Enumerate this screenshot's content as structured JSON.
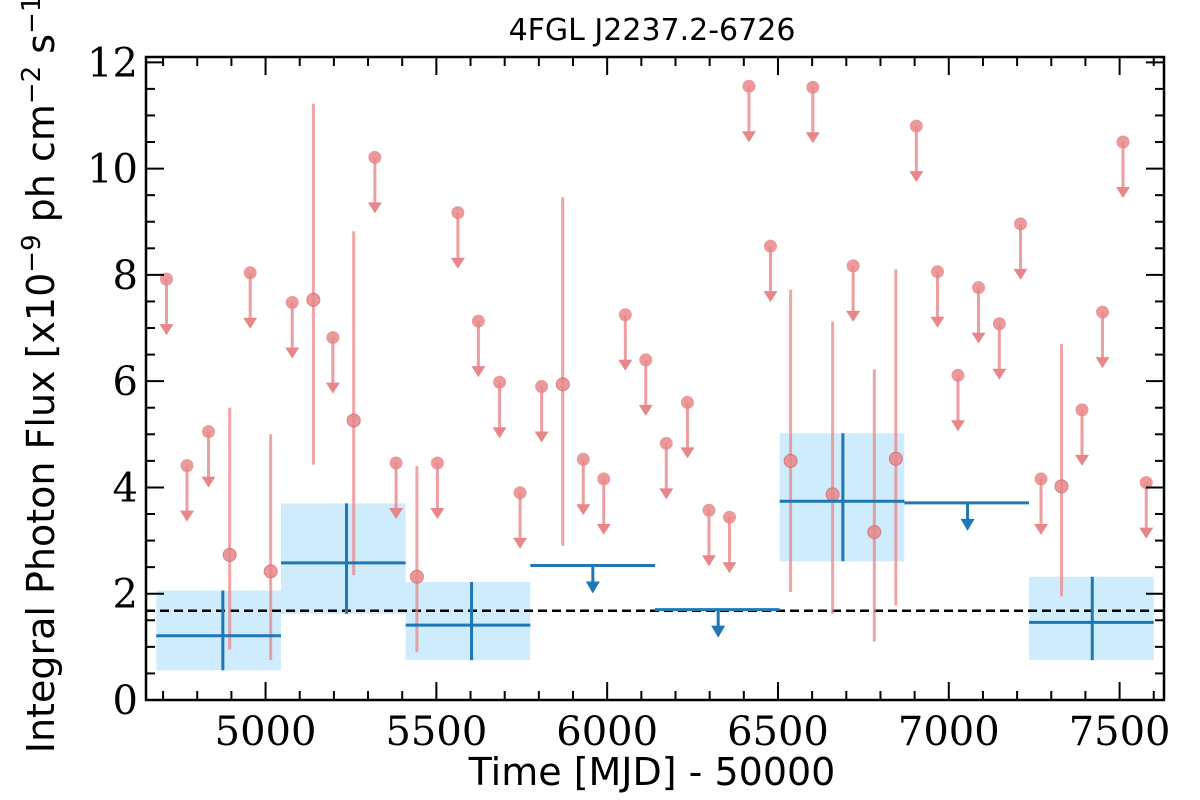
{
  "chart_data": {
    "type": "scatter",
    "title": "4FGL J2237.2-6726",
    "xlabel": "Time [MJD] - 50000",
    "ylabel": "Integral Photon Flux [x10",
    "ylabel_exp": "−9",
    "ylabel_mid": " ph cm",
    "ylabel_exp2": "−2",
    "ylabel_mid2": " s",
    "ylabel_exp3": "−1",
    "ylabel_end": "]",
    "xlim": [
      4650,
      7630
    ],
    "ylim": [
      0,
      12.1
    ],
    "xticks": [
      "5000",
      "5500",
      "6000",
      "6500",
      "7000",
      "7500"
    ],
    "yticks": [
      "0",
      "2",
      "4",
      "6",
      "8",
      "10",
      "12"
    ],
    "mean_flux": 1.68,
    "colors": {
      "fine": "#e8878a",
      "coarse": "#1f77b4",
      "band": "#bfe6fb",
      "mean": "#000000"
    },
    "fine_points": [
      {
        "x": 4895,
        "y": 2.73,
        "lo": 0.95,
        "hi": 5.5
      },
      {
        "x": 5015,
        "y": 2.42,
        "lo": 0.75,
        "hi": 5.0
      },
      {
        "x": 5140,
        "y": 7.53,
        "lo": 4.43,
        "hi": 11.22
      },
      {
        "x": 5258,
        "y": 5.26,
        "lo": 2.35,
        "hi": 8.82
      },
      {
        "x": 5443,
        "y": 2.32,
        "lo": 0.9,
        "hi": 4.4
      },
      {
        "x": 5870,
        "y": 5.94,
        "lo": 2.9,
        "hi": 9.46
      },
      {
        "x": 6537,
        "y": 4.5,
        "lo": 2.03,
        "hi": 7.72
      },
      {
        "x": 6660,
        "y": 3.87,
        "lo": 1.62,
        "hi": 7.12
      },
      {
        "x": 6782,
        "y": 3.16,
        "lo": 1.1,
        "hi": 6.22
      },
      {
        "x": 6845,
        "y": 4.54,
        "lo": 1.78,
        "hi": 8.1
      },
      {
        "x": 7330,
        "y": 4.02,
        "lo": 1.95,
        "hi": 6.7
      }
    ],
    "fine_upper_limits": [
      {
        "x": 4710,
        "y": 7.92
      },
      {
        "x": 4770,
        "y": 4.41
      },
      {
        "x": 4833,
        "y": 5.05
      },
      {
        "x": 4955,
        "y": 8.04
      },
      {
        "x": 5078,
        "y": 7.48
      },
      {
        "x": 5197,
        "y": 6.82
      },
      {
        "x": 5320,
        "y": 10.21
      },
      {
        "x": 5382,
        "y": 4.46
      },
      {
        "x": 5503,
        "y": 4.46
      },
      {
        "x": 5563,
        "y": 9.17
      },
      {
        "x": 5623,
        "y": 7.13
      },
      {
        "x": 5685,
        "y": 5.98
      },
      {
        "x": 5745,
        "y": 3.9
      },
      {
        "x": 5808,
        "y": 5.9
      },
      {
        "x": 5930,
        "y": 4.53
      },
      {
        "x": 5990,
        "y": 4.16
      },
      {
        "x": 6053,
        "y": 7.25
      },
      {
        "x": 6113,
        "y": 6.4
      },
      {
        "x": 6173,
        "y": 4.83
      },
      {
        "x": 6235,
        "y": 5.6
      },
      {
        "x": 6298,
        "y": 3.57
      },
      {
        "x": 6358,
        "y": 3.44
      },
      {
        "x": 6415,
        "y": 11.55
      },
      {
        "x": 6478,
        "y": 8.54
      },
      {
        "x": 6602,
        "y": 11.53
      },
      {
        "x": 6720,
        "y": 8.17
      },
      {
        "x": 6905,
        "y": 10.8
      },
      {
        "x": 6967,
        "y": 8.06
      },
      {
        "x": 7027,
        "y": 6.11
      },
      {
        "x": 7087,
        "y": 7.76
      },
      {
        "x": 7148,
        "y": 7.08
      },
      {
        "x": 7210,
        "y": 8.96
      },
      {
        "x": 7270,
        "y": 4.16
      },
      {
        "x": 7390,
        "y": 5.46
      },
      {
        "x": 7450,
        "y": 7.3
      },
      {
        "x": 7510,
        "y": 10.5
      },
      {
        "x": 7578,
        "y": 4.09
      }
    ],
    "coarse_points": [
      {
        "x": 4875,
        "x0": 4680,
        "x1": 5045,
        "y": 1.21,
        "lo": 0.56,
        "hi": 2.06
      },
      {
        "x": 5237,
        "x0": 5045,
        "x1": 5410,
        "y": 2.58,
        "lo": 1.62,
        "hi": 3.7
      },
      {
        "x": 5603,
        "x0": 5410,
        "x1": 5775,
        "y": 1.41,
        "lo": 0.75,
        "hi": 2.22
      },
      {
        "x": 6690,
        "x0": 6505,
        "x1": 6870,
        "y": 3.74,
        "lo": 2.61,
        "hi": 5.02
      },
      {
        "x": 7420,
        "x0": 7235,
        "x1": 7600,
        "y": 1.46,
        "lo": 0.75,
        "hi": 2.32
      }
    ],
    "coarse_upper_limits": [
      {
        "x": 5958,
        "x0": 5775,
        "x1": 6140,
        "y": 2.53
      },
      {
        "x": 6325,
        "x0": 6140,
        "x1": 6505,
        "y": 1.7
      },
      {
        "x": 7055,
        "x0": 6870,
        "x1": 7235,
        "y": 3.71
      }
    ]
  }
}
